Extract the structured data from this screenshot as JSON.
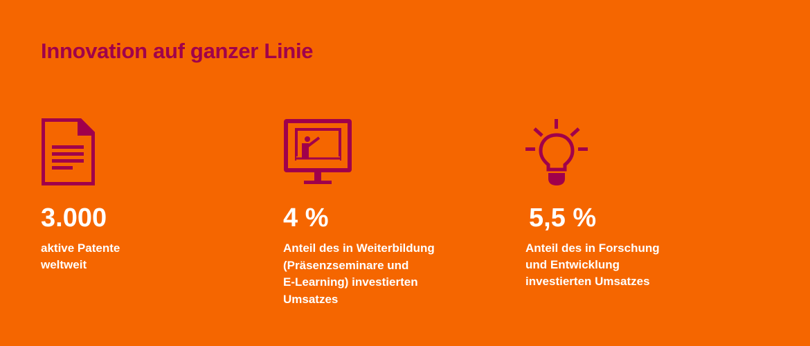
{
  "colors": {
    "background": "#F56600",
    "accent": "#A0004B",
    "text": "#FFFFFF"
  },
  "title": "Innovation auf ganzer Linie",
  "stats": [
    {
      "icon": "document-icon",
      "value": "3.000",
      "description": "aktive Patente\nweltweit"
    },
    {
      "icon": "presentation-monitor-icon",
      "value": "4 %",
      "description": "Anteil des in Weiterbildung\n(Präsenzseminare und\nE-Learning) investierten\nUmsatzes"
    },
    {
      "icon": "lightbulb-icon",
      "value": "5,5 %",
      "description": "Anteil des in Forschung\nund Entwicklung\ninvestierten Umsatzes"
    }
  ]
}
